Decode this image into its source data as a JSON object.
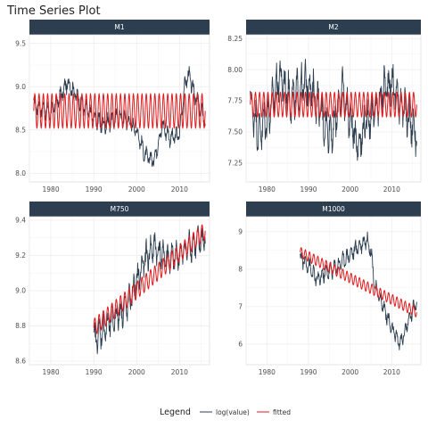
{
  "title": "Time Series Plot",
  "legend": {
    "title": "Legend",
    "position": "bottom",
    "items": [
      {
        "label": "log(value)",
        "color": "#2c3e50"
      },
      {
        "label": "fitted",
        "color": "#e31a1c"
      }
    ]
  },
  "colors": {
    "strip": "#2c3e50",
    "grid": "#ebebeb",
    "panel_border": "#d9d9d9"
  },
  "chart_data": [
    {
      "type": "line",
      "panel": "M1",
      "xlim": [
        1975,
        2017
      ],
      "x_ticks": [
        1980,
        1990,
        2000,
        2010
      ],
      "ylim": [
        7.9,
        9.6
      ],
      "y_ticks": [
        "8.0",
        "8.5",
        "9.0",
        "9.5"
      ],
      "series": [
        {
          "name": "log(value)",
          "start_year": 1976,
          "end_year": 2016,
          "period": 12,
          "points_per_year": 12,
          "x": [
            1976,
            1980,
            1984,
            1988,
            1992,
            1996,
            1998,
            2000,
            2002,
            2004,
            2006,
            2008,
            2010,
            2011,
            2012,
            2014,
            2016
          ],
          "y": [
            8.8,
            8.7,
            9.05,
            8.75,
            8.55,
            8.65,
            8.6,
            8.5,
            8.2,
            8.15,
            8.55,
            8.4,
            8.45,
            8.95,
            9.15,
            8.85,
            8.6
          ],
          "amplitude": 0.07
        },
        {
          "name": "fitted",
          "start_year": 1976,
          "end_year": 2016,
          "period": 12,
          "points_per_year": 12,
          "x": [
            1976,
            2016
          ],
          "y": [
            8.72,
            8.72
          ],
          "amplitude": 0.2
        }
      ]
    },
    {
      "type": "line",
      "panel": "M2",
      "xlim": [
        1975,
        2017
      ],
      "x_ticks": [
        1980,
        1990,
        2000,
        2010
      ],
      "ylim": [
        7.1,
        8.28
      ],
      "y_ticks": [
        "7.25",
        "7.50",
        "7.75",
        "8.00",
        "8.25"
      ],
      "series": [
        {
          "name": "log(value)",
          "start_year": 1976,
          "end_year": 2016,
          "period": 12,
          "points_per_year": 12,
          "x": [
            1976,
            1978,
            1980,
            1983,
            1986,
            1988,
            1990,
            1992,
            1994,
            1996,
            1998,
            2000,
            2002,
            2004,
            2006,
            2008,
            2010,
            2012,
            2014,
            2016
          ],
          "y": [
            7.75,
            7.5,
            7.6,
            7.95,
            7.75,
            7.85,
            7.9,
            7.75,
            7.55,
            7.5,
            7.85,
            7.6,
            7.4,
            7.6,
            7.65,
            7.85,
            7.9,
            7.75,
            7.6,
            7.5
          ],
          "amplitude": 0.12
        },
        {
          "name": "fitted",
          "start_year": 1976,
          "end_year": 2016,
          "period": 12,
          "points_per_year": 12,
          "x": [
            1976,
            2016
          ],
          "y": [
            7.72,
            7.72
          ],
          "amplitude": 0.1
        }
      ]
    },
    {
      "type": "line",
      "panel": "M750",
      "xlim": [
        1975,
        2017
      ],
      "x_ticks": [
        1980,
        1990,
        2000,
        2010
      ],
      "ylim": [
        8.58,
        9.42
      ],
      "y_ticks": [
        "8.6",
        "8.8",
        "9.0",
        "9.2",
        "9.4"
      ],
      "series": [
        {
          "name": "log(value)",
          "start_year": 1990,
          "end_year": 2016,
          "period": 12,
          "points_per_year": 12,
          "x": [
            1990,
            1994,
            1998,
            2000,
            2002,
            2004,
            2006,
            2008,
            2010,
            2012,
            2014,
            2016
          ],
          "y": [
            8.72,
            8.82,
            8.92,
            9.05,
            9.18,
            9.25,
            9.2,
            9.18,
            9.2,
            9.25,
            9.27,
            9.3
          ],
          "amplitude": 0.06
        },
        {
          "name": "fitted",
          "start_year": 1990,
          "end_year": 2016,
          "period": 12,
          "points_per_year": 12,
          "x": [
            1990,
            2016
          ],
          "y": [
            8.79,
            9.34
          ],
          "amplitude": 0.05
        }
      ]
    },
    {
      "type": "line",
      "panel": "M1000",
      "xlim": [
        1975,
        2017
      ],
      "x_ticks": [
        1980,
        1990,
        2000,
        2010
      ],
      "ylim": [
        5.45,
        9.4
      ],
      "y_ticks": [
        "6",
        "7",
        "8",
        "9"
      ],
      "series": [
        {
          "name": "log(value)",
          "start_year": 1988,
          "end_year": 2016,
          "period": 12,
          "points_per_year": 12,
          "x": [
            1988,
            1990,
            1992,
            1994,
            1996,
            1998,
            2000,
            2002,
            2004,
            2005,
            2006,
            2008,
            2010,
            2012,
            2014,
            2016
          ],
          "y": [
            8.3,
            8.1,
            7.7,
            7.9,
            8.0,
            8.2,
            8.4,
            8.6,
            8.8,
            8.5,
            7.5,
            7.0,
            6.4,
            6.0,
            6.6,
            7.2
          ],
          "amplitude": 0.15
        },
        {
          "name": "fitted",
          "start_year": 1988,
          "end_year": 2016,
          "period": 12,
          "points_per_year": 12,
          "x": [
            1988,
            2016
          ],
          "y": [
            8.45,
            6.85
          ],
          "amplitude": 0.14
        }
      ]
    }
  ]
}
